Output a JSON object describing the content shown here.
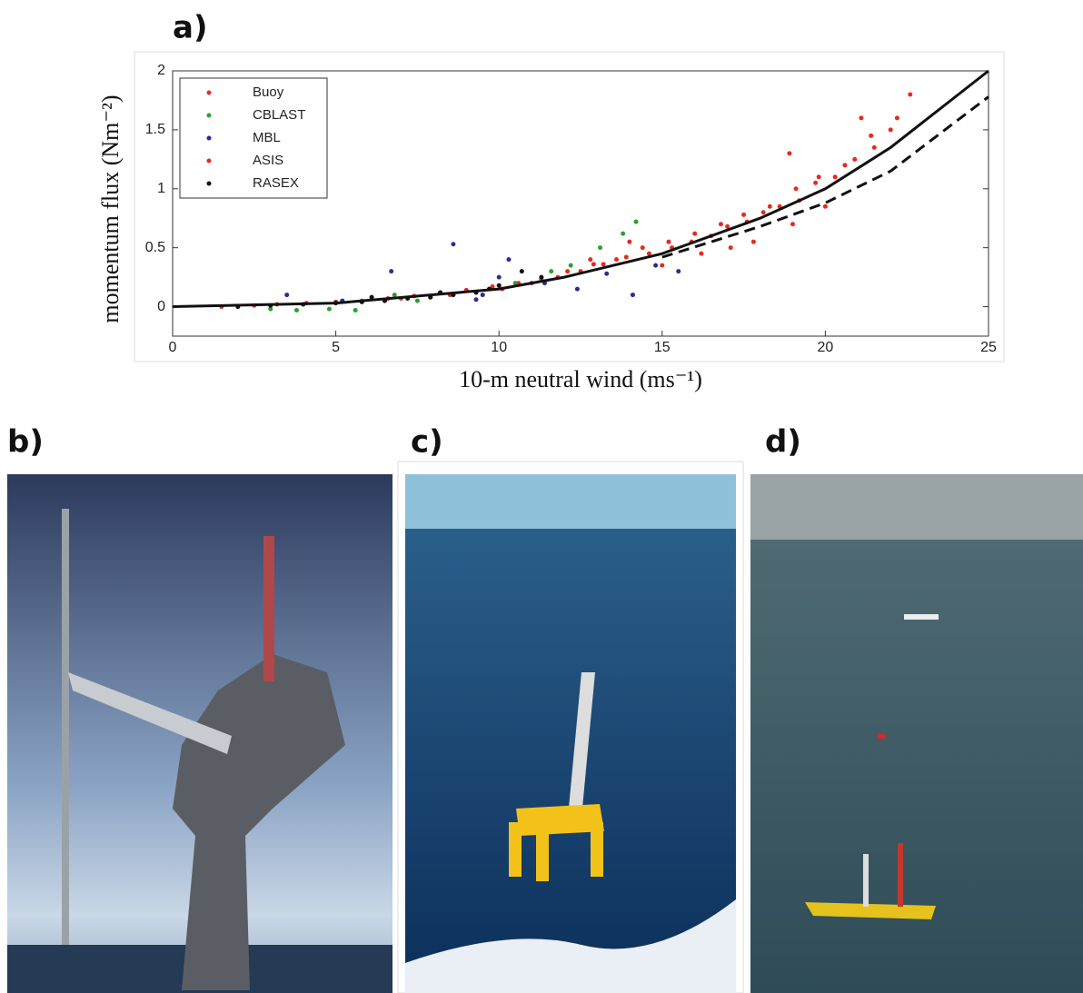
{
  "panels": {
    "a": "a)",
    "b": "b)",
    "c": "c)",
    "d": "d)"
  },
  "chart_data": {
    "type": "scatter",
    "xlabel": "10-m neutral wind (ms⁻¹)",
    "ylabel": "momentum flux (Nm⁻²)",
    "xlim": [
      0,
      25
    ],
    "ylim": [
      -0.25,
      2
    ],
    "xticks": [
      0,
      5,
      10,
      15,
      20,
      25
    ],
    "yticks": [
      0,
      0.5,
      1,
      1.5,
      2
    ],
    "legend": "upper left",
    "series": [
      {
        "name": "Buoy",
        "color": "#e62a1e",
        "x": [
          1.5,
          2.5,
          3.2,
          4.1,
          5.0,
          5.8,
          6.6,
          7.4,
          8.2,
          9.0,
          9.8,
          10.6,
          11.3,
          12.1,
          12.9,
          13.6,
          14.4,
          15.2,
          16.0,
          16.8,
          17.5,
          18.3,
          19.1,
          19.8,
          20.6,
          21.4,
          22.2,
          22.6,
          18.9,
          17.1
        ],
        "values": [
          0.0,
          0.01,
          0.02,
          0.03,
          0.04,
          0.05,
          0.07,
          0.09,
          0.12,
          0.14,
          0.17,
          0.2,
          0.23,
          0.3,
          0.36,
          0.4,
          0.5,
          0.55,
          0.62,
          0.7,
          0.78,
          0.85,
          1.0,
          1.1,
          1.2,
          1.45,
          1.6,
          1.8,
          1.3,
          0.5
        ]
      },
      {
        "name": "CBLAST",
        "color": "#2e9e2e",
        "x": [
          3.0,
          3.8,
          4.8,
          5.6,
          6.8,
          7.5,
          10.5,
          12.2,
          13.1,
          13.8,
          14.2,
          11.6
        ],
        "values": [
          -0.02,
          -0.03,
          -0.02,
          -0.03,
          0.1,
          0.05,
          0.2,
          0.35,
          0.5,
          0.62,
          0.72,
          0.3
        ]
      },
      {
        "name": "MBL",
        "color": "#2b2b95",
        "x": [
          3.5,
          5.2,
          6.7,
          7.9,
          8.6,
          9.5,
          10.3,
          11.4,
          12.4,
          13.3,
          14.1,
          14.8,
          15.5,
          10.0,
          9.3
        ],
        "values": [
          0.1,
          0.05,
          0.3,
          0.08,
          0.53,
          0.1,
          0.4,
          0.2,
          0.15,
          0.28,
          0.1,
          0.35,
          0.3,
          0.25,
          0.06
        ]
      },
      {
        "name": "ASIS",
        "color": "#e62a1e",
        "x": [
          7.0,
          8.5,
          10.1,
          11.0,
          11.8,
          12.5,
          13.2,
          13.9,
          14.6,
          15.3,
          15.9,
          16.5,
          17.0,
          17.6,
          18.1,
          18.6,
          19.2,
          19.7,
          20.3,
          20.9,
          21.5,
          22.0,
          15.0,
          16.2,
          17.8,
          19.0,
          14.0,
          12.8,
          20.0,
          21.1
        ],
        "values": [
          0.07,
          0.1,
          0.15,
          0.2,
          0.25,
          0.3,
          0.36,
          0.42,
          0.45,
          0.5,
          0.55,
          0.6,
          0.68,
          0.72,
          0.8,
          0.85,
          0.9,
          1.05,
          1.1,
          1.25,
          1.35,
          1.5,
          0.35,
          0.45,
          0.55,
          0.7,
          0.55,
          0.4,
          0.85,
          1.6
        ]
      },
      {
        "name": "RASEX",
        "color": "#111111",
        "x": [
          2.0,
          3.0,
          4.0,
          5.0,
          5.8,
          6.5,
          7.2,
          7.9,
          8.6,
          9.3,
          10.0,
          10.7,
          11.3,
          6.1,
          8.2,
          9.7
        ],
        "values": [
          0.0,
          0.01,
          0.02,
          0.03,
          0.04,
          0.05,
          0.07,
          0.08,
          0.1,
          0.12,
          0.18,
          0.3,
          0.25,
          0.08,
          0.12,
          0.15
        ]
      }
    ],
    "fits": [
      {
        "dashed": false,
        "x": [
          0,
          5,
          10,
          12,
          15,
          18,
          20,
          22,
          25
        ],
        "values": [
          0,
          0.03,
          0.15,
          0.25,
          0.45,
          0.75,
          1.0,
          1.35,
          2.0
        ]
      },
      {
        "dashed": true,
        "x": [
          15,
          18,
          20,
          22,
          25
        ],
        "values": [
          0.42,
          0.68,
          0.88,
          1.15,
          1.78
        ]
      }
    ]
  }
}
